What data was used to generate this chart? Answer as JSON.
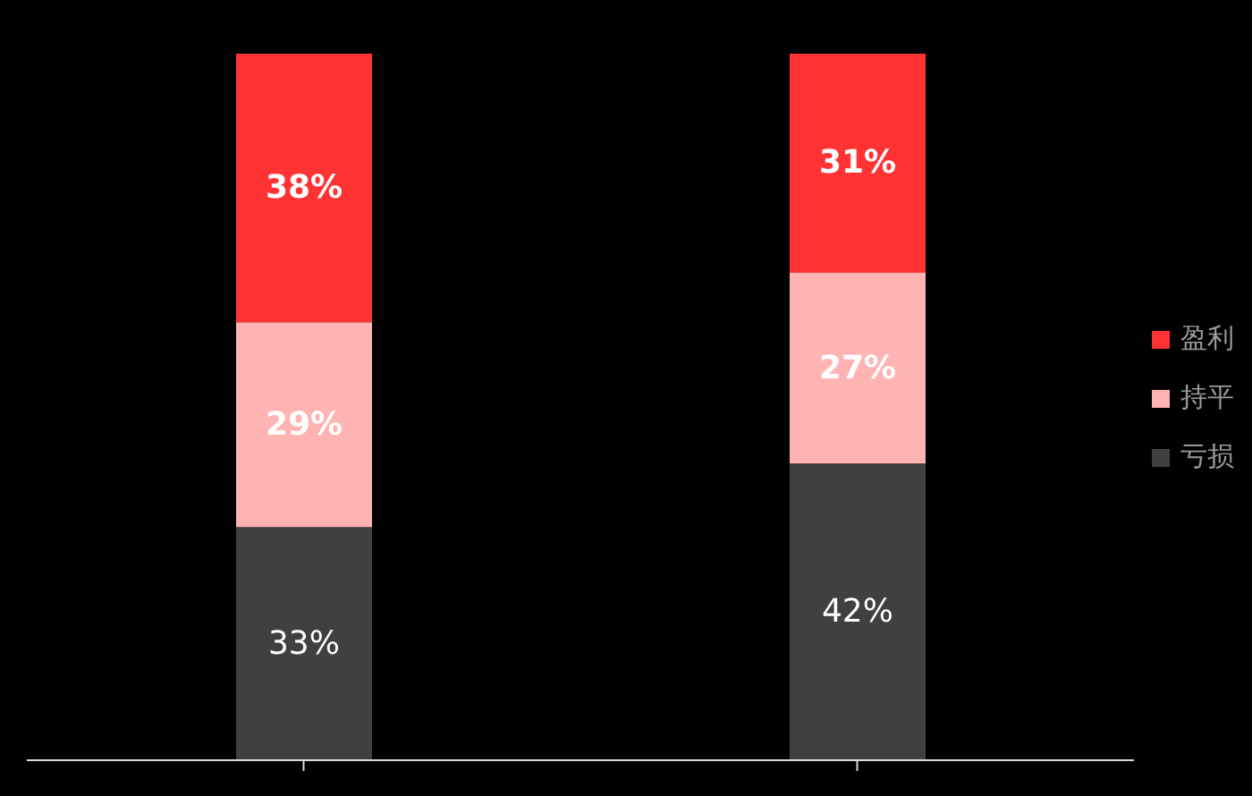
{
  "chart_data": {
    "type": "bar",
    "stacked": true,
    "ylim": [
      0,
      100
    ],
    "categories": [
      null,
      null
    ],
    "legend": "right",
    "series": [
      {
        "name": "亏损",
        "color": "#404040",
        "values": [
          33,
          42
        ],
        "value_labels": [
          "33%",
          "42%"
        ]
      },
      {
        "name": "持平",
        "color": "#ffb3b3",
        "values": [
          29,
          27
        ],
        "value_labels": [
          "29%",
          "27%"
        ]
      },
      {
        "name": "盈利",
        "color": "#ff3333",
        "values": [
          38,
          31
        ],
        "value_labels": [
          "38%",
          "31%"
        ]
      }
    ]
  }
}
